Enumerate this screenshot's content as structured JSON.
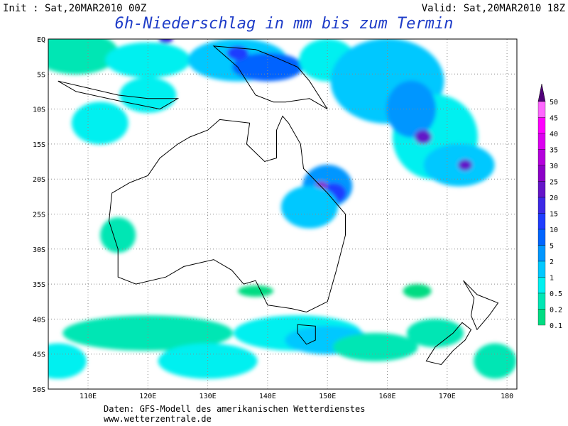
{
  "header": {
    "init": "Init : Sat,20MAR2010 00Z",
    "valid": "Valid: Sat,20MAR2010 18Z",
    "title": "6h-Niederschlag in mm bis zum Termin"
  },
  "map": {
    "lat_labels": [
      "EQ",
      "5S",
      "10S",
      "15S",
      "20S",
      "25S",
      "30S",
      "35S",
      "40S",
      "45S",
      "50S"
    ],
    "lon_labels": [
      "110E",
      "120E",
      "130E",
      "140E",
      "150E",
      "160E",
      "170E",
      "180"
    ]
  },
  "legend": {
    "labels": [
      "50",
      "45",
      "40",
      "35",
      "30",
      "25",
      "20",
      "15",
      "10",
      "5",
      "2",
      "1",
      "0.5",
      "0.2",
      "0.1"
    ]
  },
  "footer": {
    "source": "Daten: GFS-Modell des amerikanischen Wetterdienstes",
    "url": "www.wetterzentrale.de"
  }
}
